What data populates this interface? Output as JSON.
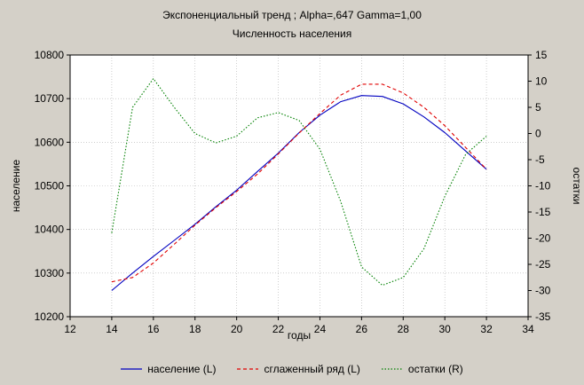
{
  "chart_data": {
    "type": "line",
    "title": "Экспоненциальный тренд ; Alpha=,647 Gamma=1,00",
    "subtitle": "Численность населения",
    "xlabel": "годы",
    "ylabel_left": "население",
    "ylabel_right": "остатки",
    "xlim": [
      12,
      34
    ],
    "ylim_left": [
      10200,
      10800
    ],
    "ylim_right": [
      -35,
      15
    ],
    "x_ticks": [
      "12",
      "14",
      "16",
      "18",
      "20",
      "22",
      "24",
      "26",
      "28",
      "30",
      "32",
      "34"
    ],
    "y_left_ticks": [
      "10200",
      "10300",
      "10400",
      "10500",
      "10600",
      "10700",
      "10800"
    ],
    "y_right_ticks": [
      "15",
      "10",
      "5",
      "0",
      "-5",
      "-10",
      "-15",
      "-20",
      "-25",
      "-30",
      "-35"
    ],
    "grid": true,
    "legend_placement": "bottom",
    "series": [
      {
        "name": "население (L)",
        "axis": "left",
        "color": "#0000c0",
        "style": "solid",
        "x": [
          14,
          15,
          16,
          17,
          18,
          19,
          20,
          21,
          22,
          23,
          24,
          25,
          26,
          27,
          28,
          29,
          30,
          31,
          32
        ],
        "y": [
          10260,
          10300,
          10338,
          10375,
          10412,
          10452,
          10490,
          10533,
          10575,
          10622,
          10662,
          10693,
          10707,
          10705,
          10688,
          10658,
          10622,
          10580,
          10538
        ]
      },
      {
        "name": "сглаженный ряд (L)",
        "axis": "left",
        "color": "#e00000",
        "style": "dashed",
        "x": [
          14,
          15,
          16,
          17,
          18,
          19,
          20,
          21,
          22,
          23,
          24,
          25,
          26,
          27,
          28,
          29,
          30,
          31,
          32
        ],
        "y": [
          10280,
          10290,
          10323,
          10366,
          10410,
          10450,
          10487,
          10527,
          10573,
          10621,
          10666,
          10708,
          10733,
          10733,
          10713,
          10680,
          10638,
          10588,
          10538
        ]
      },
      {
        "name": "остатки (R)",
        "axis": "right",
        "color": "#008000",
        "style": "dotted",
        "x": [
          14,
          15,
          16,
          17,
          18,
          19,
          20,
          21,
          22,
          23,
          24,
          25,
          26,
          27,
          28,
          29,
          30,
          31,
          32
        ],
        "y": [
          -19,
          5,
          10.5,
          5,
          0,
          -1.8,
          -0.5,
          3,
          4,
          2.5,
          -3,
          -13,
          -25.5,
          -29,
          -27.5,
          -22,
          -12,
          -4,
          -0.5
        ]
      }
    ]
  }
}
